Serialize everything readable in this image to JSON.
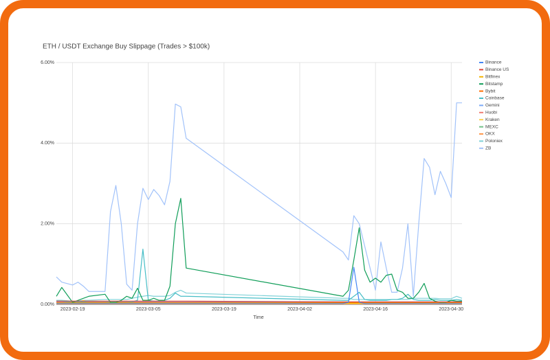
{
  "chart_data": {
    "type": "line",
    "title": "ETH / USDT Exchange Buy Slippage (Trades > $100k)",
    "x_label": "Time",
    "x": [
      "2023-02-16",
      "2023-02-17",
      "2023-02-19",
      "2023-02-20",
      "2023-02-21",
      "2023-02-22",
      "2023-02-25",
      "2023-02-26",
      "2023-02-27",
      "2023-02-28",
      "2023-03-01",
      "2023-03-02",
      "2023-03-03",
      "2023-03-04",
      "2023-03-05",
      "2023-03-06",
      "2023-03-07",
      "2023-03-08",
      "2023-03-09",
      "2023-03-10",
      "2023-03-11",
      "2023-03-12",
      "2023-04-10",
      "2023-04-11",
      "2023-04-12",
      "2023-04-13",
      "2023-04-14",
      "2023-04-15",
      "2023-04-16",
      "2023-04-17",
      "2023-04-18",
      "2023-04-19",
      "2023-04-20",
      "2023-04-21",
      "2023-04-22",
      "2023-04-23",
      "2023-04-24",
      "2023-04-25",
      "2023-04-26",
      "2023-04-27",
      "2023-04-28",
      "2023-04-29",
      "2023-04-30",
      "2023-05-01",
      "2023-05-02"
    ],
    "xlim": [
      "2023-02-16",
      "2023-05-02"
    ],
    "xticks": [
      "2023-02-19",
      "2023-03-05",
      "2023-03-19",
      "2023-04-02",
      "2023-04-16",
      "2023-04-30"
    ],
    "ylim": [
      0,
      6
    ],
    "yticks": [
      {
        "value": 0,
        "label": "0.00%"
      },
      {
        "value": 2,
        "label": "2.00%"
      },
      {
        "value": 4,
        "label": "4.00%"
      },
      {
        "value": 6,
        "label": "6.00%"
      }
    ],
    "grid": true,
    "legend": "right",
    "series": [
      {
        "name": "Binance",
        "color": "#4285f4",
        "values": [
          0.02,
          0.02,
          0.02,
          0.02,
          0.02,
          0.02,
          0.02,
          0.02,
          0.02,
          0.02,
          0.02,
          0.02,
          0.02,
          0.02,
          0.02,
          0.02,
          0.02,
          0.02,
          0.02,
          0.02,
          0.02,
          0.02,
          0.02,
          0.05,
          0.92,
          0.05,
          0.02,
          0.02,
          0.02,
          0.02,
          0.02,
          0.02,
          0.02,
          0.02,
          0.02,
          0.02,
          0.02,
          0.02,
          0.02,
          0.02,
          0.02,
          0.02,
          0.02,
          0.02,
          0.02
        ]
      },
      {
        "name": "Binance US",
        "color": "#db4437",
        "values": [
          0.08,
          0.08,
          0.08,
          0.08,
          0.08,
          0.08,
          0.08,
          0.08,
          0.08,
          0.08,
          0.08,
          0.08,
          0.08,
          0.08,
          0.08,
          0.08,
          0.08,
          0.08,
          0.08,
          0.08,
          0.08,
          0.08,
          0.06,
          0.06,
          0.06,
          0.06,
          0.06,
          0.06,
          0.06,
          0.06,
          0.06,
          0.06,
          0.06,
          0.06,
          0.06,
          0.06,
          0.06,
          0.06,
          0.06,
          0.06,
          0.06,
          0.06,
          0.06,
          0.06,
          0.06
        ]
      },
      {
        "name": "Bitfinex",
        "color": "#f4b400",
        "values": [
          0.03,
          0.03,
          0.03,
          0.03,
          0.03,
          0.03,
          0.03,
          0.03,
          0.03,
          0.03,
          0.03,
          0.03,
          0.03,
          0.03,
          0.03,
          0.03,
          0.03,
          0.03,
          0.03,
          0.03,
          0.03,
          0.03,
          0.03,
          0.03,
          0.03,
          0.03,
          0.03,
          0.03,
          0.03,
          0.03,
          0.03,
          0.03,
          0.03,
          0.03,
          0.03,
          0.03,
          0.03,
          0.03,
          0.03,
          0.03,
          0.03,
          0.03,
          0.03,
          0.03,
          0.03
        ]
      },
      {
        "name": "Bitstamp",
        "color": "#0f9d58",
        "values": [
          0.2,
          0.42,
          0.05,
          0.1,
          0.15,
          0.2,
          0.25,
          0.05,
          0.05,
          0.1,
          0.2,
          0.15,
          0.4,
          0.1,
          0.1,
          0.15,
          0.1,
          0.1,
          0.45,
          2.0,
          2.63,
          0.9,
          0.2,
          0.35,
          1.1,
          1.9,
          0.85,
          0.55,
          0.65,
          0.55,
          0.72,
          0.75,
          0.35,
          0.3,
          0.15,
          0.15,
          0.3,
          0.52,
          0.15,
          0.08,
          0.05,
          0.05,
          0.1,
          0.08,
          0.08
        ]
      },
      {
        "name": "Bybit",
        "color": "#ff6d01",
        "values": [
          0.04,
          0.04,
          0.04,
          0.04,
          0.04,
          0.04,
          0.04,
          0.04,
          0.04,
          0.04,
          0.04,
          0.04,
          0.04,
          0.04,
          0.04,
          0.04,
          0.04,
          0.04,
          0.04,
          0.04,
          0.04,
          0.04,
          0.04,
          0.04,
          0.04,
          0.04,
          0.04,
          0.04,
          0.04,
          0.04,
          0.04,
          0.04,
          0.04,
          0.04,
          0.04,
          0.04,
          0.04,
          0.04,
          0.04,
          0.04,
          0.04,
          0.04,
          0.04,
          0.04,
          0.04
        ]
      },
      {
        "name": "Coinbase",
        "color": "#46bdc6",
        "values": [
          0.08,
          0.08,
          0.05,
          0.06,
          0.06,
          0.05,
          0.05,
          0.06,
          0.06,
          0.05,
          0.05,
          0.06,
          0.1,
          1.37,
          0.1,
          0.08,
          0.08,
          0.1,
          0.15,
          0.28,
          0.2,
          0.2,
          0.1,
          0.1,
          0.2,
          0.3,
          0.12,
          0.1,
          0.1,
          0.1,
          0.1,
          0.12,
          0.12,
          0.15,
          0.25,
          0.12,
          0.1,
          0.1,
          0.1,
          0.12,
          0.1,
          0.1,
          0.1,
          0.12,
          0.1
        ]
      },
      {
        "name": "Gemini",
        "color": "#7baaf7",
        "values": [
          0.05,
          0.05,
          0.05,
          0.05,
          0.05,
          0.05,
          0.05,
          0.05,
          0.05,
          0.05,
          0.05,
          0.05,
          0.05,
          0.05,
          0.05,
          0.05,
          0.05,
          0.05,
          0.05,
          0.05,
          0.05,
          0.05,
          0.05,
          0.05,
          0.05,
          0.05,
          0.05,
          0.05,
          0.05,
          0.05,
          0.05,
          0.05,
          0.05,
          0.05,
          0.05,
          0.05,
          0.05,
          0.05,
          0.05,
          0.05,
          0.05,
          0.05,
          0.05,
          0.05,
          0.05
        ]
      },
      {
        "name": "Huobi",
        "color": "#f07b72",
        "values": [
          0.06,
          0.06,
          0.06,
          0.06,
          0.06,
          0.06,
          0.06,
          0.06,
          0.06,
          0.06,
          0.06,
          0.06,
          0.06,
          0.06,
          0.06,
          0.06,
          0.06,
          0.06,
          0.06,
          0.06,
          0.06,
          0.06,
          0.06,
          0.06,
          0.06,
          0.06,
          0.06,
          0.06,
          0.06,
          0.06,
          0.06,
          0.06,
          0.06,
          0.06,
          0.06,
          0.06,
          0.06,
          0.06,
          0.06,
          0.06,
          0.06,
          0.06,
          0.06,
          0.06,
          0.06
        ]
      },
      {
        "name": "Kraken",
        "color": "#fcd04f",
        "values": [
          0.02,
          0.02,
          0.02,
          0.02,
          0.1,
          0.02,
          0.02,
          0.02,
          0.02,
          0.02,
          0.02,
          0.02,
          0.02,
          0.02,
          0.12,
          0.02,
          0.02,
          0.02,
          0.02,
          0.02,
          0.02,
          0.02,
          0.02,
          0.02,
          0.02,
          0.02,
          0.02,
          0.02,
          0.02,
          0.02,
          0.02,
          0.02,
          0.02,
          0.02,
          0.02,
          0.02,
          0.02,
          0.02,
          0.02,
          0.02,
          0.02,
          0.02,
          0.02,
          0.02,
          0.02
        ]
      },
      {
        "name": "MEXC",
        "color": "#71c287",
        "values": [
          0.03,
          0.03,
          0.03,
          0.03,
          0.03,
          0.03,
          0.03,
          0.03,
          0.03,
          0.03,
          0.03,
          0.03,
          0.03,
          0.03,
          0.03,
          0.03,
          0.03,
          0.03,
          0.03,
          0.03,
          0.03,
          0.03,
          0.03,
          0.03,
          0.03,
          0.03,
          0.03,
          0.03,
          0.03,
          0.03,
          0.03,
          0.03,
          0.03,
          0.03,
          0.03,
          0.03,
          0.03,
          0.03,
          0.03,
          0.03,
          0.03,
          0.03,
          0.03,
          0.03,
          0.03
        ]
      },
      {
        "name": "OKX",
        "color": "#ff994d",
        "values": [
          0.01,
          0.01,
          0.01,
          0.01,
          0.01,
          0.01,
          0.01,
          0.01,
          0.01,
          0.01,
          0.01,
          0.01,
          0.01,
          0.01,
          0.01,
          0.01,
          0.01,
          0.01,
          0.01,
          0.01,
          0.01,
          0.01,
          0.01,
          0.01,
          0.01,
          0.01,
          0.01,
          0.01,
          0.01,
          0.01,
          0.01,
          0.01,
          0.01,
          0.01,
          0.01,
          0.01,
          0.01,
          0.01,
          0.01,
          0.01,
          0.01,
          0.01,
          0.01,
          0.01,
          0.01
        ]
      },
      {
        "name": "Poloniex",
        "color": "#7ed1d7",
        "values": [
          0.1,
          0.1,
          0.08,
          0.08,
          0.1,
          0.1,
          0.12,
          0.12,
          0.12,
          0.12,
          0.12,
          0.15,
          0.18,
          0.2,
          0.22,
          0.2,
          0.2,
          0.2,
          0.22,
          0.3,
          0.35,
          0.28,
          0.15,
          0.15,
          0.12,
          0.12,
          0.12,
          0.12,
          0.12,
          0.12,
          0.12,
          0.12,
          0.12,
          0.12,
          0.12,
          0.15,
          0.15,
          0.15,
          0.15,
          0.15,
          0.14,
          0.14,
          0.14,
          0.2,
          0.15
        ]
      },
      {
        "name": "ZB",
        "color": "#a1c2fa",
        "values": [
          0.68,
          0.55,
          0.48,
          0.55,
          0.45,
          0.32,
          0.32,
          2.3,
          2.95,
          2.0,
          0.5,
          0.35,
          2.0,
          2.88,
          2.6,
          2.85,
          2.7,
          2.47,
          3.05,
          4.97,
          4.9,
          4.12,
          1.3,
          1.1,
          2.2,
          2.0,
          1.45,
          0.9,
          0.35,
          1.55,
          0.9,
          0.3,
          0.3,
          0.9,
          2.0,
          0.2,
          2.0,
          3.62,
          3.4,
          2.72,
          3.3,
          3.0,
          2.65,
          5.0,
          5.0
        ]
      }
    ]
  }
}
